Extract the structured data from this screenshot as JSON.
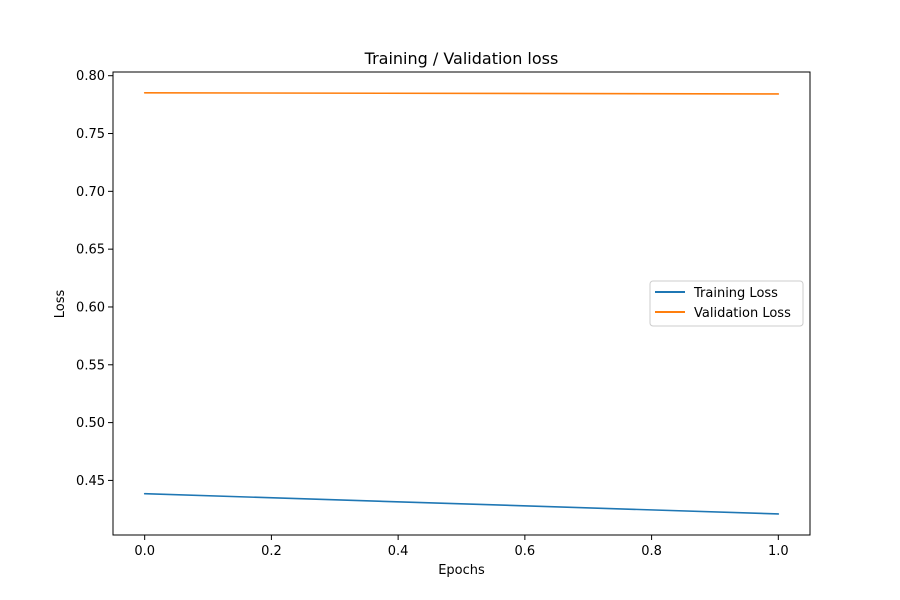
{
  "chart_data": {
    "type": "line",
    "title": "Training / Validation loss",
    "xlabel": "Epochs",
    "ylabel": "Loss",
    "x": [
      0.0,
      1.0
    ],
    "series": [
      {
        "name": "Training Loss",
        "values": [
          0.4385,
          0.421
        ],
        "color": "#1f77b4"
      },
      {
        "name": "Validation Loss",
        "values": [
          0.7852,
          0.7842
        ],
        "color": "#ff7f0e"
      }
    ],
    "xlim": [
      -0.05,
      1.05
    ],
    "ylim": [
      0.4028,
      0.8032
    ],
    "xticks": [
      0.0,
      0.2,
      0.4,
      0.6,
      0.8,
      1.0
    ],
    "xtick_labels": [
      "0.0",
      "0.2",
      "0.4",
      "0.6",
      "0.8",
      "1.0"
    ],
    "yticks": [
      0.45,
      0.5,
      0.55,
      0.6,
      0.65,
      0.7,
      0.75,
      0.8
    ],
    "ytick_labels": [
      "0.45",
      "0.50",
      "0.55",
      "0.60",
      "0.65",
      "0.70",
      "0.75",
      "0.80"
    ],
    "grid": false,
    "legend_position": "center-right"
  }
}
